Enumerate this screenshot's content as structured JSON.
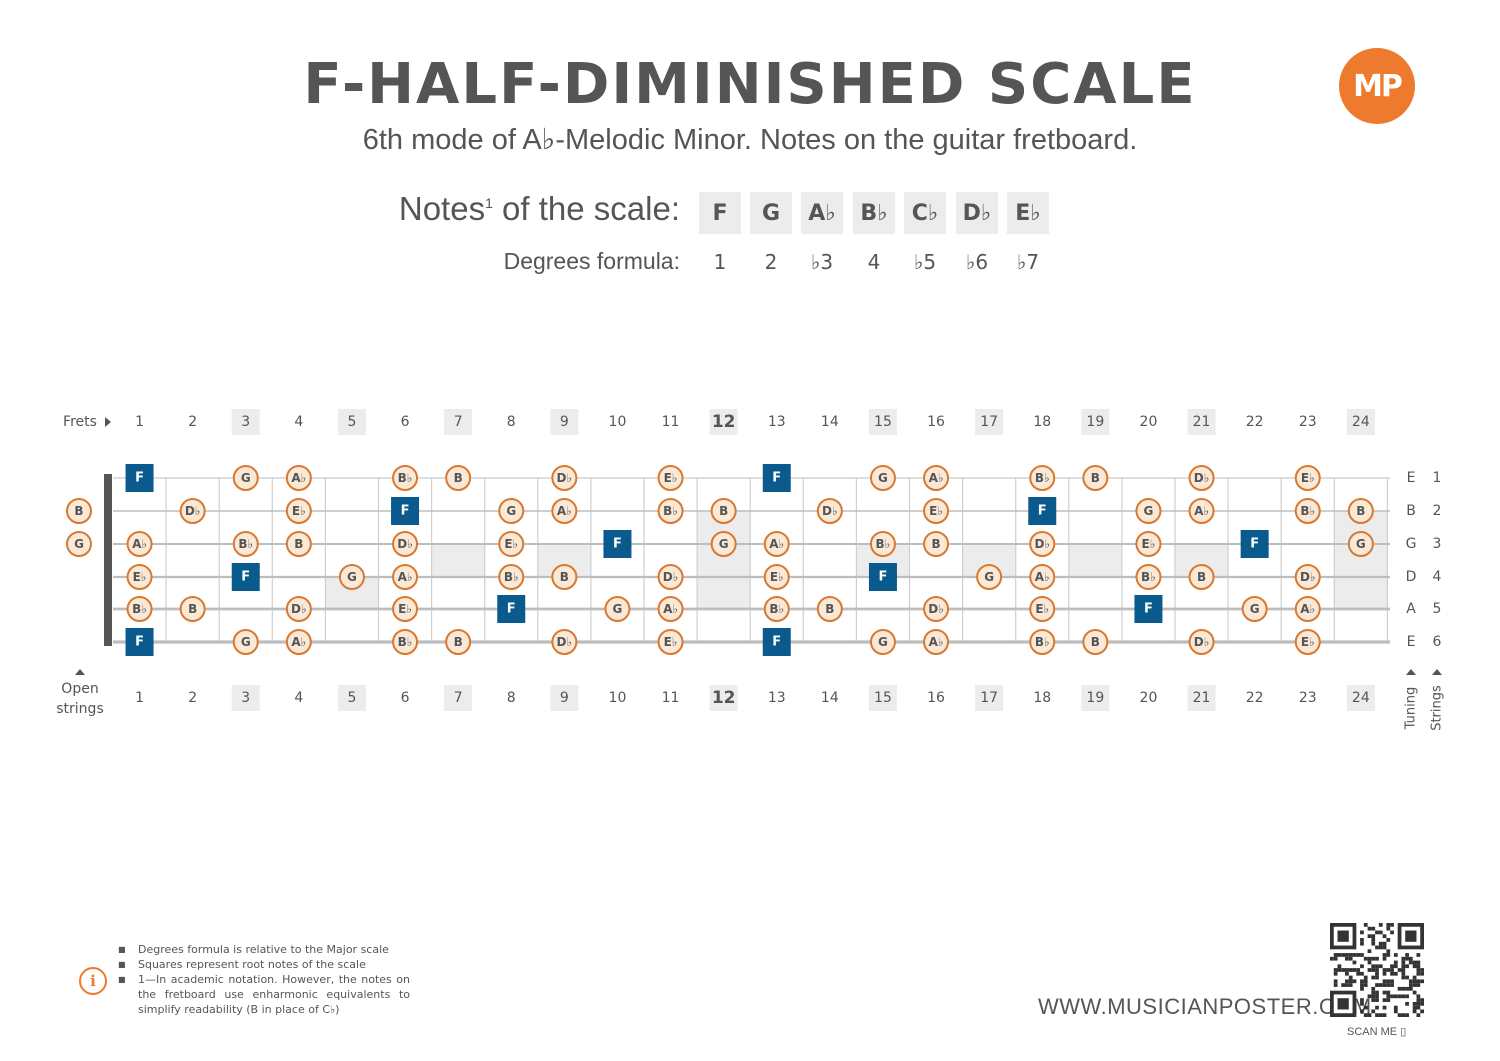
{
  "header": {
    "title": "F-HALF-DIMINISHED SCALE",
    "subtitle": "6th mode of A♭-Melodic Minor. Notes on the guitar fretboard.",
    "logo": "MP"
  },
  "scale": {
    "notes_label": "Notes",
    "notes_label_sup": "1",
    "notes_label_tail": " of the scale:",
    "degrees_label": "Degrees formula:",
    "notes": [
      "F",
      "G",
      "A♭",
      "B♭",
      "C♭",
      "D♭",
      "E♭"
    ],
    "degrees": [
      "1",
      "2",
      "♭3",
      "4",
      "♭5",
      "♭6",
      "♭7"
    ]
  },
  "fretboard": {
    "frets_label": "Frets",
    "open_strings_label_1": "Open",
    "open_strings_label_2": "strings",
    "tuning_label": "Tuning",
    "strings_label": "Strings",
    "fret_numbers": [
      "1",
      "2",
      "3",
      "4",
      "5",
      "6",
      "7",
      "8",
      "9",
      "10",
      "11",
      "12",
      "13",
      "14",
      "15",
      "16",
      "17",
      "18",
      "19",
      "20",
      "21",
      "22",
      "23",
      "24"
    ],
    "highlighted_frets": [
      3,
      5,
      7,
      9,
      12,
      15,
      17,
      19,
      21,
      24
    ],
    "tuning": [
      "E",
      "B",
      "G",
      "D",
      "A",
      "E"
    ],
    "string_numbers": [
      "1",
      "2",
      "3",
      "4",
      "5",
      "6"
    ],
    "open_notes": [
      {
        "string": 2,
        "note": "B"
      },
      {
        "string": 3,
        "note": "G"
      }
    ],
    "root": "F",
    "strings": [
      [
        "F",
        "",
        "G",
        "A♭",
        "",
        "B♭",
        "B",
        "",
        "D♭",
        "",
        "E♭",
        "",
        "F",
        "",
        "G",
        "A♭",
        "",
        "B♭",
        "B",
        "",
        "D♭",
        "",
        "E♭",
        ""
      ],
      [
        "",
        "D♭",
        "",
        "E♭",
        "",
        "F",
        "",
        "G",
        "A♭",
        "",
        "B♭",
        "B",
        "",
        "D♭",
        "",
        "E♭",
        "",
        "F",
        "",
        "G",
        "A♭",
        "",
        "B♭",
        "B"
      ],
      [
        "A♭",
        "",
        "B♭",
        "B",
        "",
        "D♭",
        "",
        "E♭",
        "",
        "F",
        "",
        "G",
        "A♭",
        "",
        "B♭",
        "B",
        "",
        "D♭",
        "",
        "E♭",
        "",
        "F",
        "",
        "G"
      ],
      [
        "E♭",
        "",
        "F",
        "",
        "G",
        "A♭",
        "",
        "B♭",
        "B",
        "",
        "D♭",
        "",
        "E♭",
        "",
        "F",
        "",
        "G",
        "A♭",
        "",
        "B♭",
        "B",
        "",
        "D♭",
        ""
      ],
      [
        "B♭",
        "B",
        "",
        "D♭",
        "",
        "E♭",
        "",
        "F",
        "",
        "G",
        "A♭",
        "",
        "B♭",
        "B",
        "",
        "D♭",
        "",
        "E♭",
        "",
        "F",
        "",
        "G",
        "A♭",
        ""
      ],
      [
        "F",
        "",
        "G",
        "A♭",
        "",
        "B♭",
        "B",
        "",
        "D♭",
        "",
        "E♭",
        "",
        "F",
        "",
        "G",
        "A♭",
        "",
        "B♭",
        "B",
        "",
        "D♭",
        "",
        "E♭",
        ""
      ]
    ],
    "colors": {
      "root_fill": "#0b5a8e",
      "note_stroke": "#d9782f",
      "note_fill": "#fbe9d8",
      "shade": "#ececec"
    }
  },
  "footnotes": [
    "Degrees formula is relative to the Major scale",
    "Squares represent root notes of the scale",
    "1—In academic notation. However, the notes on the fretboard use enharmonic equivalents to simplify readability (B in place of C♭)"
  ],
  "footer": {
    "website": "WWW.MUSICIANPOSTER.COM",
    "scan_me": "SCAN ME"
  }
}
